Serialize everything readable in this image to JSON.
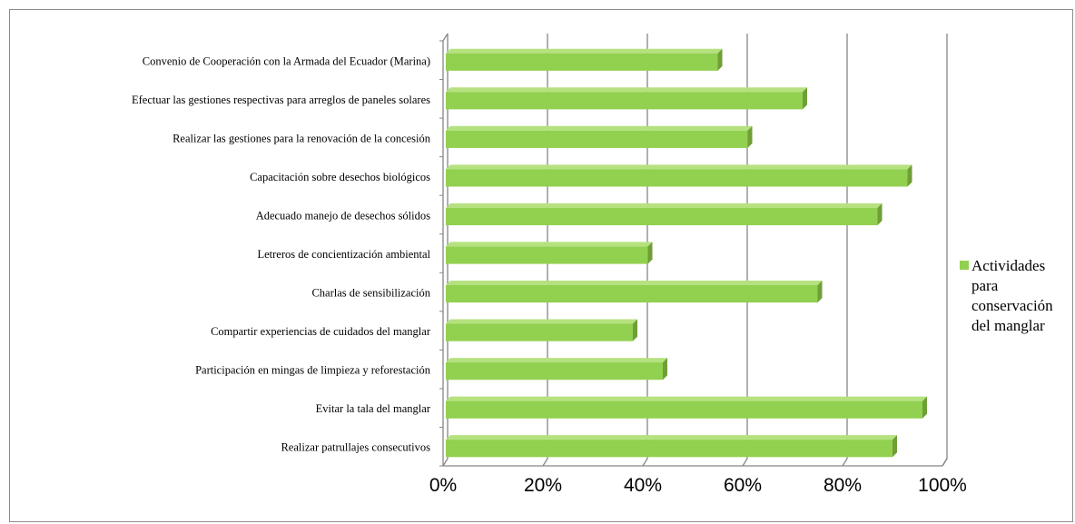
{
  "chart_data": {
    "type": "bar",
    "orientation": "horizontal",
    "style": "3d",
    "title": "",
    "xlabel": "",
    "ylabel": "",
    "categories": [
      "Convenio de Cooperación con la Armada del Ecuador (Marina)",
      "Efectuar las gestiones respectivas para arreglos de paneles solares",
      "Realizar las gestiones para la renovación de la concesión",
      "Capacitación sobre desechos biológicos",
      "Adecuado manejo de desechos sólidos",
      "Letreros de concientización ambiental",
      "Charlas de sensibilización",
      "Compartir experiencias de cuidados del manglar",
      "Participación en mingas de limpieza y reforestación",
      "Evitar la tala del manglar",
      "Realizar patrullajes consecutivos"
    ],
    "series": [
      {
        "name": "Actividades para conservación del manglar",
        "values": [
          55,
          72,
          61,
          93,
          87,
          41,
          75,
          38,
          44,
          96,
          90
        ]
      }
    ],
    "xlim": [
      0,
      100
    ],
    "ticks": [
      "0%",
      "20%",
      "40%",
      "60%",
      "80%",
      "100%"
    ],
    "grid": true,
    "legend_position": "right",
    "legend_lines": [
      "Actividades",
      "para",
      "conservación",
      "del manglar"
    ],
    "colors": {
      "bar_front": "#92d050",
      "bar_top": "#b5e27f",
      "bar_side": "#6f9f36",
      "grid": "#868686",
      "axis": "#868686"
    }
  }
}
